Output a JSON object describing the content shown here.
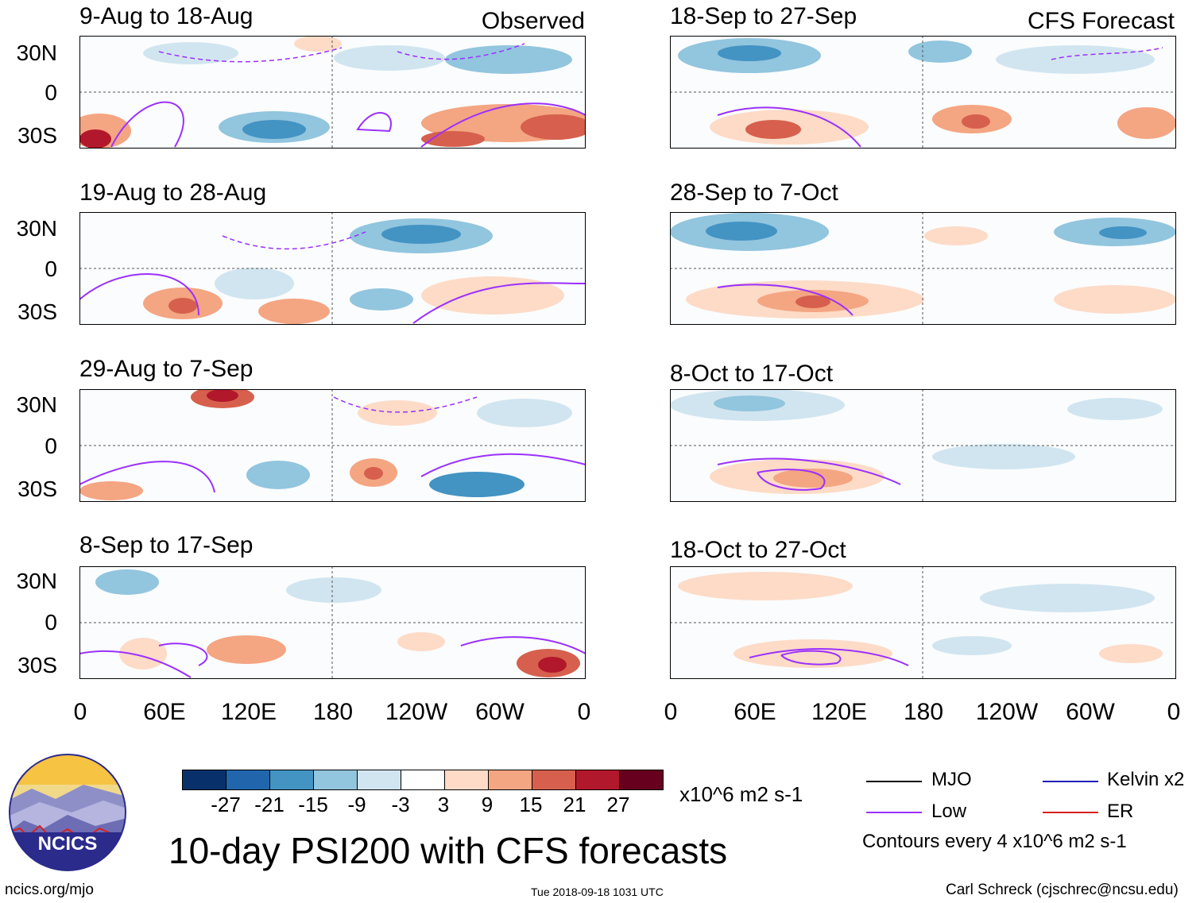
{
  "left_column_label": "Observed",
  "right_column_label": "CFS Forecast",
  "panels_left": [
    {
      "title": "9-Aug to 18-Aug"
    },
    {
      "title": "19-Aug to 28-Aug"
    },
    {
      "title": "29-Aug to 7-Sep"
    },
    {
      "title": "8-Sep to 17-Sep"
    }
  ],
  "panels_right": [
    {
      "title": "18-Sep to 27-Sep"
    },
    {
      "title": "28-Sep to 7-Oct"
    },
    {
      "title": "8-Oct to 17-Oct"
    },
    {
      "title": "18-Oct to 27-Oct"
    }
  ],
  "lat_labels": [
    "30N",
    "0",
    "30S"
  ],
  "lon_labels": [
    "0",
    "60E",
    "120E",
    "180",
    "120W",
    "60W",
    "0"
  ],
  "colorbar": {
    "colors": [
      "#08306b",
      "#2166ac",
      "#4393c3",
      "#92c5de",
      "#d1e5f0",
      "#ffffff",
      "#fddbc7",
      "#f4a582",
      "#d6604d",
      "#b2182b",
      "#67001f"
    ],
    "labels": [
      "-27",
      "-21",
      "-15",
      "-9",
      "-3",
      "3",
      "9",
      "15",
      "21",
      "27"
    ],
    "units": "x10^6 m2 s-1"
  },
  "main_title": "10-day PSI200 with CFS forecasts",
  "logo_text": "NCICS",
  "legend": {
    "items": [
      {
        "label": "MJO",
        "color": "#000000"
      },
      {
        "label": "Kelvin x2",
        "color": "#1f1fb4"
      },
      {
        "label": "Low",
        "color": "#9b30ff"
      },
      {
        "label": "ER",
        "color": "#d62020"
      }
    ],
    "note": "Contours every 4 x10^6 m2 s-1"
  },
  "footer": {
    "url": "ncics.org/mjo",
    "timestamp": "Tue 2018-09-18 1031 UTC",
    "credit": "Carl Schreck (cjschrec@ncsu.edu)"
  }
}
